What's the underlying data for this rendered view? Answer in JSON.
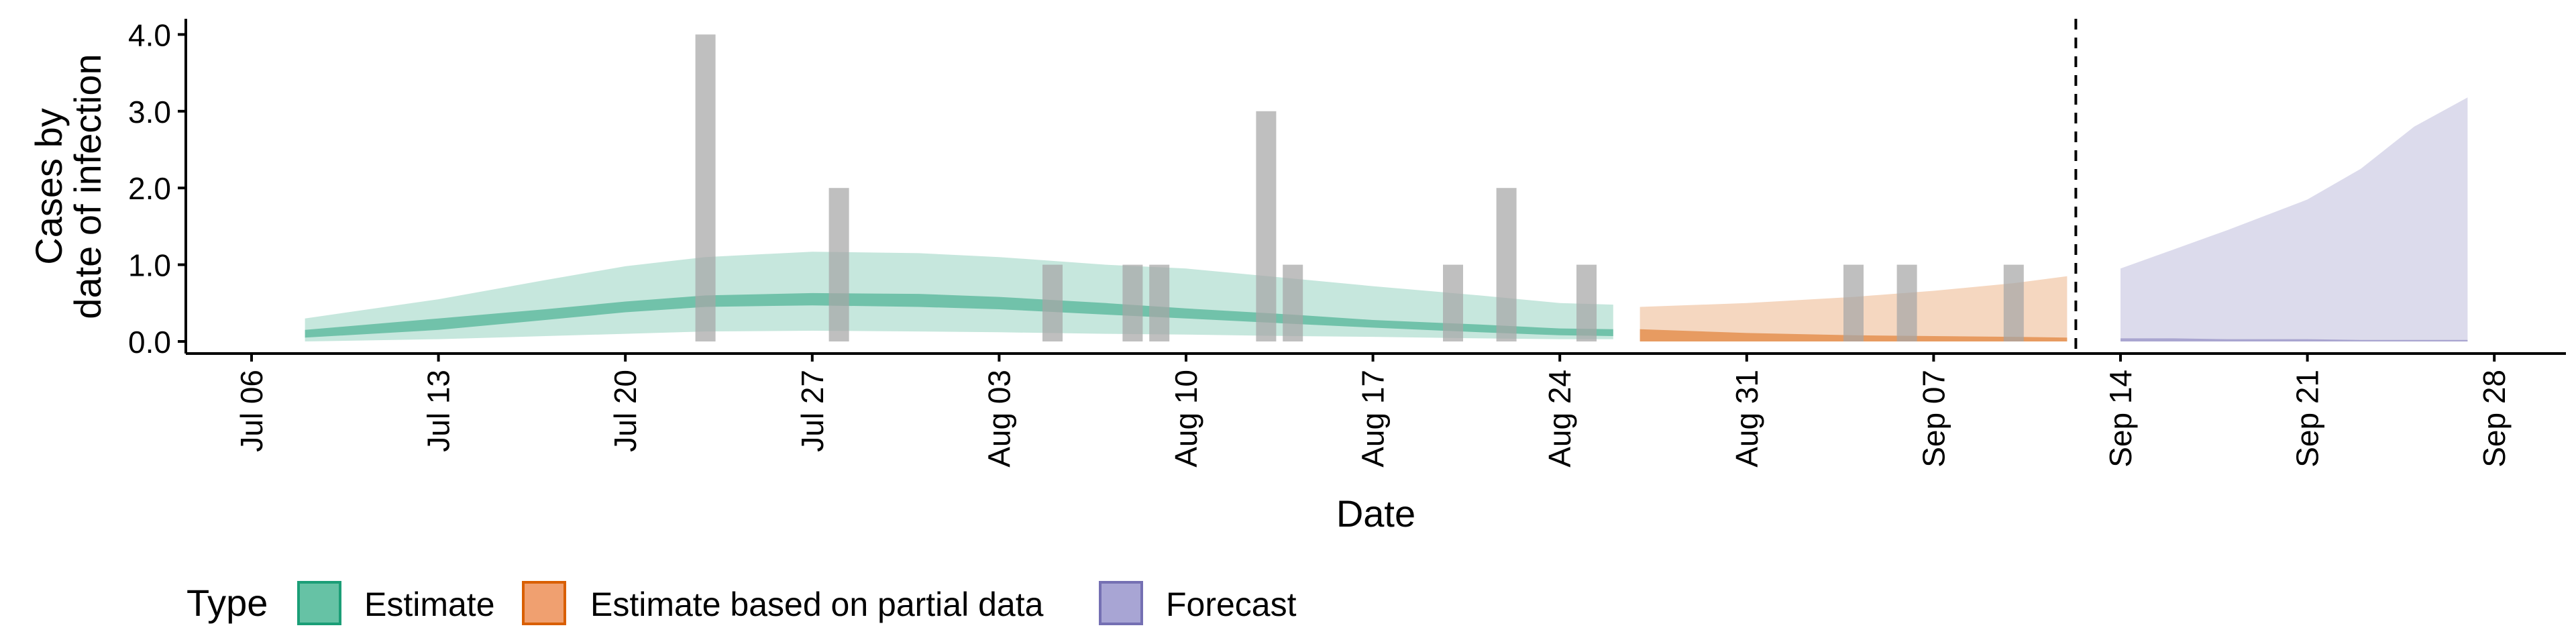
{
  "chart_data": {
    "type": "area",
    "xlabel": "Date",
    "ylabel_lines": [
      "Cases by",
      "date of infection"
    ],
    "ylim": [
      -0.2,
      4.2
    ],
    "xlim": [
      "2020-07-06",
      "2020-10-01"
    ],
    "y_ticks": [
      {
        "value": 0,
        "label": "0.0"
      },
      {
        "value": 1,
        "label": "1.0"
      },
      {
        "value": 2,
        "label": "2.0"
      },
      {
        "value": 3,
        "label": "3.0"
      },
      {
        "value": 4,
        "label": "4.0"
      }
    ],
    "x_ticks": [
      {
        "date": "2020-07-06",
        "label": "Jul 06"
      },
      {
        "date": "2020-07-13",
        "label": "Jul 13"
      },
      {
        "date": "2020-07-20",
        "label": "Jul 20"
      },
      {
        "date": "2020-07-27",
        "label": "Jul 27"
      },
      {
        "date": "2020-08-03",
        "label": "Aug 03"
      },
      {
        "date": "2020-08-10",
        "label": "Aug 10"
      },
      {
        "date": "2020-08-17",
        "label": "Aug 17"
      },
      {
        "date": "2020-08-24",
        "label": "Aug 24"
      },
      {
        "date": "2020-08-31",
        "label": "Aug 31"
      },
      {
        "date": "2020-09-07",
        "label": "Sep 07"
      },
      {
        "date": "2020-09-14",
        "label": "Sep 14"
      },
      {
        "date": "2020-09-21",
        "label": "Sep 21"
      },
      {
        "date": "2020-09-28",
        "label": "Sep 28"
      }
    ],
    "observed_cases": [
      {
        "date": "2020-07-23",
        "value": 4
      },
      {
        "date": "2020-07-28",
        "value": 2
      },
      {
        "date": "2020-08-05",
        "value": 1
      },
      {
        "date": "2020-08-08",
        "value": 1
      },
      {
        "date": "2020-08-09",
        "value": 1
      },
      {
        "date": "2020-08-13",
        "value": 3
      },
      {
        "date": "2020-08-14",
        "value": 1
      },
      {
        "date": "2020-08-20",
        "value": 1
      },
      {
        "date": "2020-08-22",
        "value": 2
      },
      {
        "date": "2020-08-25",
        "value": 1
      },
      {
        "date": "2020-09-04",
        "value": 1
      },
      {
        "date": "2020-09-06",
        "value": 1
      },
      {
        "date": "2020-09-10",
        "value": 1
      }
    ],
    "reference_line_date": "2020-09-12",
    "series": [
      {
        "name": "Estimate",
        "color": "#1b9e77",
        "dates": [
          "2020-07-08",
          "2020-07-13",
          "2020-07-17",
          "2020-07-20",
          "2020-07-23",
          "2020-07-27",
          "2020-07-31",
          "2020-08-03",
          "2020-08-07",
          "2020-08-10",
          "2020-08-14",
          "2020-08-17",
          "2020-08-21",
          "2020-08-24",
          "2020-08-26"
        ],
        "outer_lower": [
          0.0,
          0.03,
          0.07,
          0.1,
          0.13,
          0.14,
          0.13,
          0.12,
          0.1,
          0.09,
          0.07,
          0.06,
          0.04,
          0.03,
          0.03
        ],
        "outer_upper": [
          0.3,
          0.55,
          0.8,
          0.98,
          1.1,
          1.17,
          1.15,
          1.1,
          1.0,
          0.95,
          0.82,
          0.72,
          0.6,
          0.5,
          0.48
        ],
        "inner_lower": [
          0.05,
          0.15,
          0.28,
          0.38,
          0.45,
          0.47,
          0.45,
          0.42,
          0.35,
          0.3,
          0.23,
          0.18,
          0.12,
          0.08,
          0.07
        ],
        "inner_upper": [
          0.15,
          0.3,
          0.42,
          0.52,
          0.6,
          0.63,
          0.62,
          0.58,
          0.5,
          0.43,
          0.35,
          0.28,
          0.22,
          0.17,
          0.16
        ]
      },
      {
        "name": "Estimate based on partial data",
        "color": "#d95f02",
        "dates": [
          "2020-08-27",
          "2020-08-31",
          "2020-09-04",
          "2020-09-07",
          "2020-09-10",
          "2020-09-12"
        ],
        "outer_lower": [
          0.0,
          0.0,
          0.0,
          0.0,
          0.0,
          0.0
        ],
        "outer_upper": [
          0.45,
          0.5,
          0.58,
          0.66,
          0.76,
          0.85
        ],
        "inner_lower": [
          0.0,
          0.0,
          0.0,
          0.0,
          0.0,
          0.0
        ],
        "inner_upper": [
          0.16,
          0.11,
          0.08,
          0.07,
          0.06,
          0.05
        ]
      },
      {
        "name": "Forecast",
        "color": "#7570b3",
        "dates": [
          "2020-09-14",
          "2020-09-16",
          "2020-09-18",
          "2020-09-21",
          "2020-09-23",
          "2020-09-25",
          "2020-09-27"
        ],
        "outer_lower": [
          0.0,
          0.0,
          0.0,
          0.0,
          0.0,
          0.0,
          0.0
        ],
        "outer_upper": [
          0.95,
          1.2,
          1.45,
          1.85,
          2.25,
          2.8,
          3.18
        ],
        "inner_lower": [
          0.0,
          0.0,
          0.0,
          0.0,
          0.0,
          0.0,
          0.0
        ],
        "inner_upper": [
          0.04,
          0.04,
          0.03,
          0.03,
          0.02,
          0.02,
          0.02
        ]
      }
    ],
    "legend": {
      "title": "Type",
      "position": "bottom",
      "items": [
        {
          "label": "Estimate",
          "fill": "#66c2a5",
          "stroke": "#1b9e77"
        },
        {
          "label": "Estimate based on partial data",
          "fill": "#f0a070",
          "stroke": "#d95f02"
        },
        {
          "label": "Forecast",
          "fill": "#a8a5d4",
          "stroke": "#7570b3"
        }
      ]
    }
  }
}
